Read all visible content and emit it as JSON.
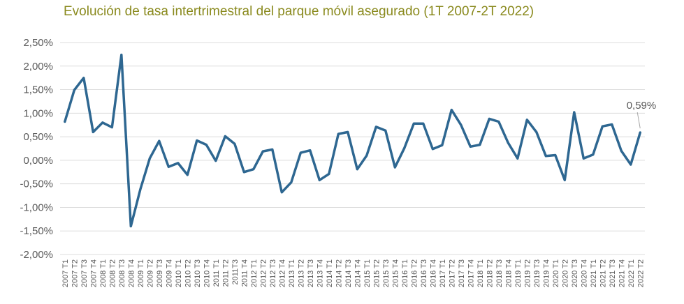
{
  "chart_data": {
    "type": "line",
    "title": "Evolución de tasa intertrimestral del parque móvil asegurado (1T 2007-2T 2022)",
    "xlabel": "",
    "ylabel": "",
    "ylim": [
      -2.0,
      2.5
    ],
    "grid": true,
    "legend": "none",
    "line_color": "#2e6791",
    "title_color": "#8a8a1e",
    "y_ticks": [
      "2,50%",
      "2,00%",
      "1,50%",
      "1,00%",
      "0,50%",
      "0,00%",
      "-0,50%",
      "-1,00%",
      "-1,50%",
      "-2,00%"
    ],
    "y_tick_values": [
      2.5,
      2.0,
      1.5,
      1.0,
      0.5,
      0.0,
      -0.5,
      -1.0,
      -1.5,
      -2.0
    ],
    "categories": [
      "2007 T1",
      "2007 T2",
      "2007 T3",
      "2007 T4",
      "2008 T1",
      "2008 T2",
      "2008 T3",
      "2008 T4",
      "2009 T1",
      "2009 T2",
      "2009 T3",
      "2009 T4",
      "2010 T1",
      "2010 T2",
      "2010 T3",
      "2010 T4",
      "2011 T1",
      "2011 T2",
      "2011T3",
      "2011 T4",
      "2012 T1",
      "2012 T2",
      "2012 T3",
      "2012 T4",
      "2013 T1",
      "2013 T2",
      "2013 T3",
      "2013 T4",
      "2014 T1",
      "2014 T2",
      "2014 T3",
      "2014 T4",
      "2015 T1",
      "2015 T2",
      "2015 T3",
      "2015 T4",
      "2016 T1",
      "2016 T2",
      "2016 T3",
      "2016 T4",
      "2017 T1",
      "2017 T2",
      "2017 T3",
      "2017 T4",
      "2018 T1",
      "2018 T2",
      "2018 T3",
      "2018 T4",
      "2019 T1",
      "2019 T2",
      "2019 T3",
      "2019 T4",
      "2020 T1",
      "2020 T2",
      "2020 T3",
      "2020 T4",
      "2021 T1",
      "2021 T2",
      "2021 T3",
      "2021 T4",
      "2022 T1",
      "2022 T2"
    ],
    "values": [
      0.82,
      1.49,
      1.75,
      0.6,
      0.8,
      0.7,
      2.24,
      -1.4,
      -0.62,
      0.04,
      0.41,
      -0.14,
      -0.06,
      -0.31,
      0.42,
      0.33,
      -0.01,
      0.51,
      0.35,
      -0.25,
      -0.19,
      0.19,
      0.23,
      -0.68,
      -0.47,
      0.16,
      0.21,
      -0.42,
      -0.29,
      0.56,
      0.6,
      -0.19,
      0.1,
      0.71,
      0.63,
      -0.15,
      0.26,
      0.78,
      0.78,
      0.24,
      0.32,
      1.07,
      0.75,
      0.29,
      0.33,
      0.88,
      0.82,
      0.37,
      0.04,
      0.86,
      0.6,
      0.09,
      0.11,
      -0.42,
      1.02,
      0.04,
      0.12,
      0.72,
      0.76,
      0.2,
      -0.09,
      0.59
    ],
    "annotations": [
      {
        "index": 61,
        "text": "0,59%"
      }
    ]
  }
}
